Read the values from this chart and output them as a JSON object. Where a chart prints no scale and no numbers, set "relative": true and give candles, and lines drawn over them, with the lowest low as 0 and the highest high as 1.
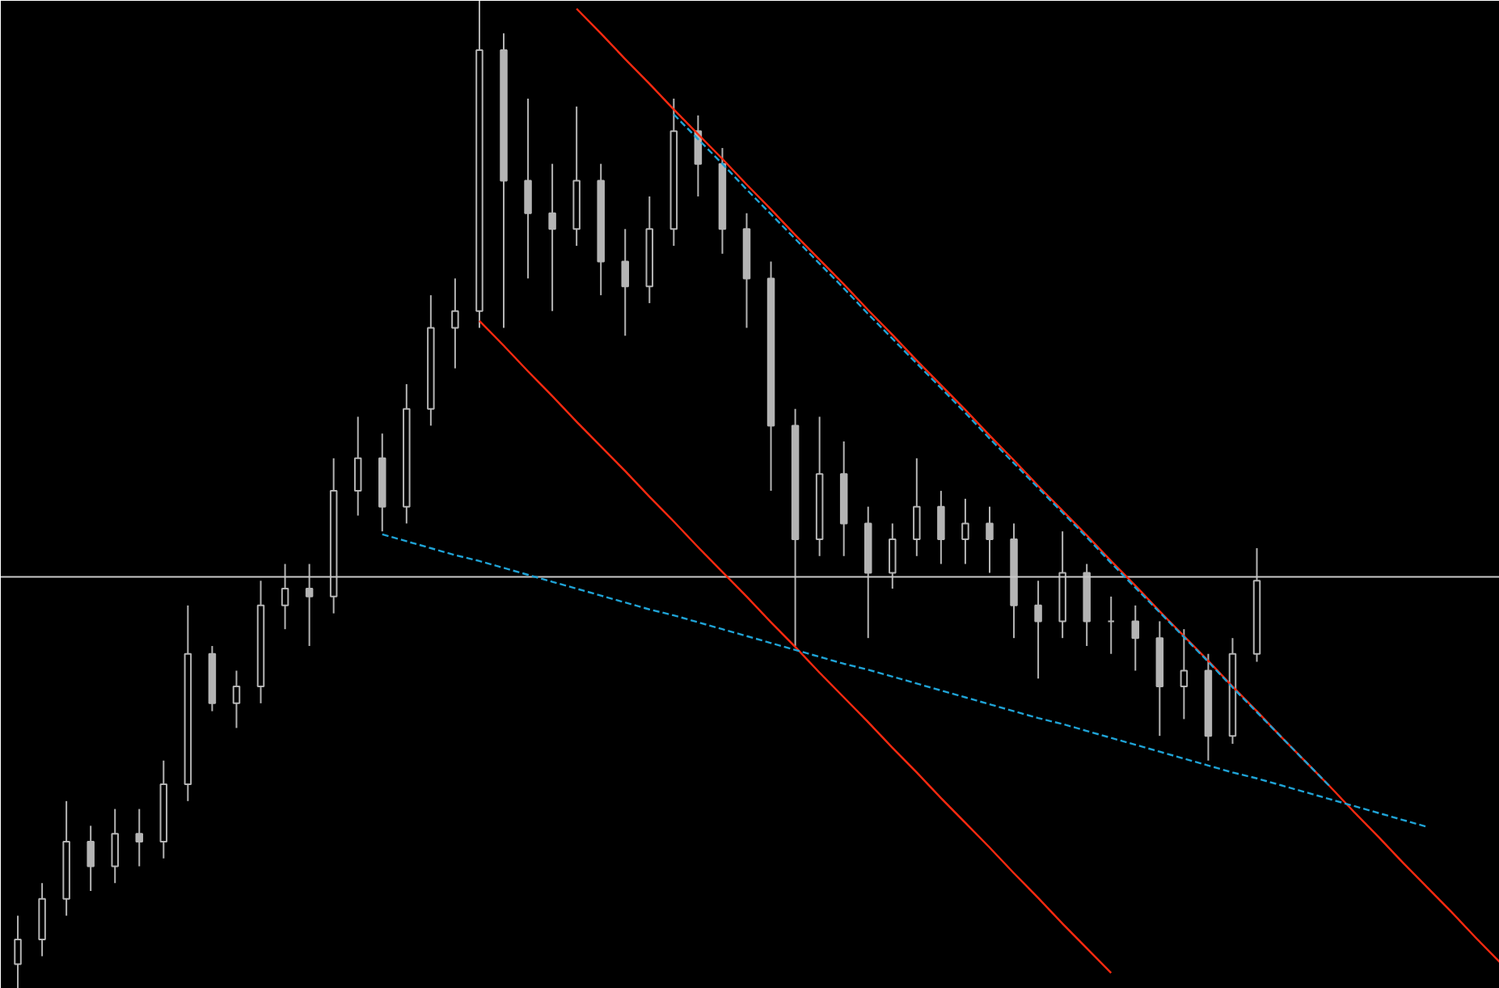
{
  "chart_data": {
    "type": "candlestick",
    "relative": true,
    "color": "#b4b4b4",
    "categories": [
      null,
      null,
      null,
      null,
      null,
      null,
      null,
      null,
      null,
      null,
      null,
      null,
      null,
      null,
      null,
      null,
      null,
      null,
      null,
      null,
      null,
      null,
      null,
      null,
      null,
      null,
      null,
      null,
      null,
      null,
      null,
      null,
      null,
      null,
      null,
      null,
      null,
      null,
      null,
      null,
      null,
      null,
      null,
      null,
      null,
      null,
      null,
      null,
      null,
      null,
      null,
      null,
      null,
      null,
      null,
      null,
      null,
      null,
      null,
      null,
      null,
      null
    ],
    "ohlc": [
      [
        0.025,
        0.074,
        0,
        0.05
      ],
      [
        0.05,
        0.107,
        0.033,
        0.091
      ],
      [
        0.091,
        0.19,
        0.074,
        0.149
      ],
      [
        0.149,
        0.165,
        0.099,
        0.124
      ],
      [
        0.124,
        0.182,
        0.107,
        0.157
      ],
      [
        0.157,
        0.182,
        0.124,
        0.149
      ],
      [
        0.149,
        0.231,
        0.132,
        0.207
      ],
      [
        0.207,
        0.388,
        0.19,
        0.339
      ],
      [
        0.339,
        0.347,
        0.281,
        0.289
      ],
      [
        0.289,
        0.322,
        0.264,
        0.306
      ],
      [
        0.306,
        0.413,
        0.289,
        0.388
      ],
      [
        0.388,
        0.43,
        0.364,
        0.405
      ],
      [
        0.405,
        0.43,
        0.347,
        0.397
      ],
      [
        0.397,
        0.537,
        0.38,
        0.504
      ],
      [
        0.504,
        0.579,
        0.479,
        0.537
      ],
      [
        0.537,
        0.562,
        0.463,
        0.488
      ],
      [
        0.488,
        0.612,
        0.471,
        0.587
      ],
      [
        0.587,
        0.702,
        0.57,
        0.669
      ],
      [
        0.669,
        0.719,
        0.628,
        0.686
      ],
      [
        0.686,
        1.0,
        0.669,
        0.95
      ],
      [
        0.95,
        0.967,
        0.669,
        0.818
      ],
      [
        0.818,
        0.901,
        0.719,
        0.785
      ],
      [
        0.785,
        0.835,
        0.686,
        0.769
      ],
      [
        0.769,
        0.893,
        0.752,
        0.818
      ],
      [
        0.818,
        0.835,
        0.702,
        0.736
      ],
      [
        0.736,
        0.769,
        0.661,
        0.711
      ],
      [
        0.711,
        0.802,
        0.694,
        0.769
      ],
      [
        0.769,
        0.901,
        0.752,
        0.868
      ],
      [
        0.868,
        0.884,
        0.802,
        0.835
      ],
      [
        0.835,
        0.851,
        0.744,
        0.769
      ],
      [
        0.769,
        0.785,
        0.669,
        0.719
      ],
      [
        0.719,
        0.736,
        0.504,
        0.57
      ],
      [
        0.57,
        0.587,
        0.347,
        0.455
      ],
      [
        0.455,
        0.579,
        0.438,
        0.521
      ],
      [
        0.521,
        0.554,
        0.438,
        0.471
      ],
      [
        0.471,
        0.488,
        0.355,
        0.421
      ],
      [
        0.421,
        0.471,
        0.405,
        0.455
      ],
      [
        0.455,
        0.537,
        0.438,
        0.488
      ],
      [
        0.488,
        0.504,
        0.43,
        0.455
      ],
      [
        0.455,
        0.496,
        0.43,
        0.471
      ],
      [
        0.471,
        0.488,
        0.421,
        0.455
      ],
      [
        0.455,
        0.471,
        0.355,
        0.388
      ],
      [
        0.388,
        0.413,
        0.314,
        0.372
      ],
      [
        0.372,
        0.463,
        0.355,
        0.421
      ],
      [
        0.421,
        0.43,
        0.347,
        0.372
      ],
      [
        0.372,
        0.397,
        0.339,
        0.372
      ],
      [
        0.372,
        0.388,
        0.322,
        0.355
      ],
      [
        0.355,
        0.372,
        0.256,
        0.306
      ],
      [
        0.306,
        0.364,
        0.273,
        0.322
      ],
      [
        0.322,
        0.339,
        0.231,
        0.256
      ],
      [
        0.256,
        0.355,
        0.248,
        0.339
      ],
      [
        0.339,
        0.446,
        0.331,
        0.413
      ],
      null,
      null,
      null,
      null,
      null,
      null,
      null,
      null,
      null,
      null
    ],
    "series": [
      {
        "type": "line",
        "color": "#ff2a10",
        "line_style": "solid",
        "values": [
          null,
          null,
          null,
          null,
          null,
          null,
          null,
          null,
          null,
          null,
          null,
          null,
          null,
          null,
          null,
          null,
          null,
          null,
          null,
          null,
          null,
          null,
          null,
          0.992,
          0.967,
          0.941,
          0.916,
          0.89,
          0.865,
          0.84,
          0.814,
          0.789,
          0.763,
          0.738,
          0.713,
          0.687,
          0.662,
          0.636,
          0.611,
          0.586,
          0.56,
          0.535,
          0.509,
          0.484,
          0.459,
          0.433,
          0.408,
          0.382,
          0.357,
          0.332,
          0.306,
          0.281,
          0.255,
          0.23,
          0.205,
          0.179,
          0.154,
          0.128,
          0.103,
          0.078,
          0.052,
          0.027
        ]
      },
      {
        "type": "line",
        "color": "#ff2a10",
        "line_style": "solid",
        "values": [
          null,
          null,
          null,
          null,
          null,
          null,
          null,
          null,
          null,
          null,
          null,
          null,
          null,
          null,
          null,
          null,
          null,
          null,
          null,
          0.676,
          0.651,
          0.625,
          0.6,
          0.574,
          0.549,
          0.524,
          0.498,
          0.473,
          0.447,
          0.422,
          0.397,
          0.371,
          0.346,
          0.32,
          0.295,
          0.27,
          0.244,
          0.219,
          0.193,
          0.168,
          0.143,
          0.117,
          0.092,
          0.066,
          0.041,
          0.016,
          null,
          null,
          null,
          null,
          null,
          null,
          null,
          null,
          null,
          null,
          null,
          null,
          null,
          null,
          null,
          null
        ]
      },
      {
        "type": "line",
        "color": "#1fa3d6",
        "line_style": "dashed",
        "values": [
          null,
          null,
          null,
          null,
          null,
          null,
          null,
          null,
          null,
          null,
          null,
          null,
          null,
          null,
          null,
          0.46,
          0.453,
          0.446,
          0.439,
          0.433,
          0.426,
          0.419,
          0.412,
          0.405,
          0.398,
          0.391,
          0.384,
          0.378,
          0.371,
          0.364,
          0.357,
          0.35,
          0.343,
          0.336,
          0.329,
          0.323,
          0.316,
          0.309,
          0.302,
          0.295,
          0.288,
          0.281,
          0.274,
          0.268,
          0.261,
          0.254,
          0.247,
          0.24,
          0.233,
          0.226,
          0.219,
          0.213,
          0.206,
          0.199,
          0.192,
          0.185,
          0.178,
          0.171,
          0.164,
          null,
          null,
          null
        ]
      },
      {
        "type": "line",
        "color": "#1fa3d6",
        "line_style": "dashed",
        "values": [
          null,
          null,
          null,
          null,
          null,
          null,
          null,
          null,
          null,
          null,
          null,
          null,
          null,
          null,
          null,
          null,
          null,
          null,
          null,
          null,
          null,
          null,
          null,
          null,
          null,
          null,
          null,
          0.885,
          0.86,
          0.835,
          0.809,
          0.784,
          0.759,
          0.734,
          0.709,
          0.683,
          0.658,
          0.633,
          0.608,
          0.583,
          0.557,
          0.532,
          0.507,
          0.482,
          0.457,
          0.431,
          0.406,
          0.381,
          0.356,
          0.331,
          0.305,
          0.28,
          0.255,
          0.23,
          0.205,
          null,
          null,
          null,
          null,
          null,
          null,
          null
        ]
      }
    ],
    "ref_lines": [
      {
        "axis": "y",
        "value": 0.417,
        "color": "#c8c8c8"
      }
    ]
  }
}
